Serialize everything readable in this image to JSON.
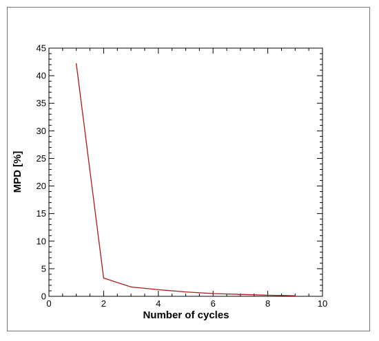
{
  "chart_data": {
    "type": "line",
    "title": "",
    "xlabel": "Number of cycles",
    "ylabel": "MPD [%]",
    "xlim": [
      0,
      10
    ],
    "ylim": [
      0,
      45
    ],
    "x_ticks": [
      0,
      2,
      4,
      6,
      8,
      10
    ],
    "y_ticks": [
      0,
      5,
      10,
      15,
      20,
      25,
      30,
      35,
      40,
      45
    ],
    "grid": false,
    "legend": "none",
    "series": [
      {
        "color": "#b01818",
        "x": [
          1,
          2,
          3,
          4,
          5,
          6,
          7,
          8,
          9
        ],
        "y": [
          42.2,
          3.3,
          1.7,
          1.2,
          0.8,
          0.5,
          0.35,
          0.2,
          0.1
        ]
      }
    ]
  }
}
